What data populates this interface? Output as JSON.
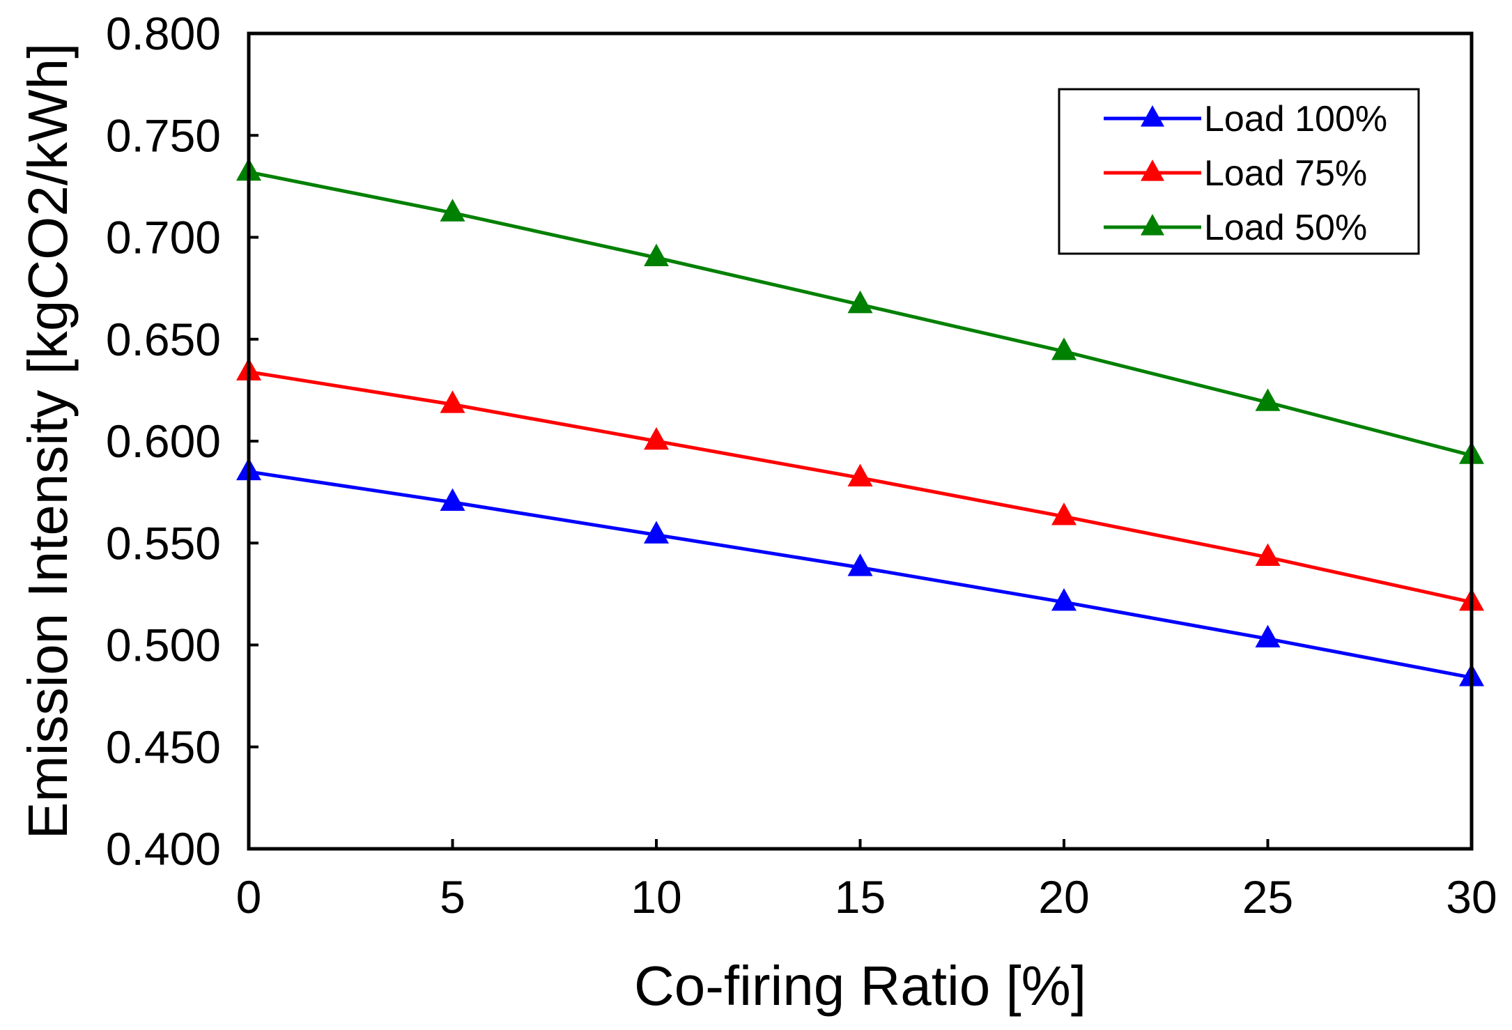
{
  "chart_data": {
    "type": "line",
    "title": "",
    "xlabel": "Co-firing Ratio [%]",
    "ylabel": "Emission Intensity [kgCO2/kWh]",
    "x": [
      0,
      5,
      10,
      15,
      20,
      25,
      30
    ],
    "xlim": [
      0,
      30
    ],
    "ylim": [
      0.4,
      0.8
    ],
    "x_ticks": [
      0,
      5,
      10,
      15,
      20,
      25,
      30
    ],
    "x_tick_labels": [
      "0",
      "5",
      "10",
      "15",
      "20",
      "25",
      "30"
    ],
    "y_ticks": [
      0.4,
      0.45,
      0.5,
      0.55,
      0.6,
      0.65,
      0.7,
      0.75,
      0.8
    ],
    "y_tick_labels": [
      "0.400",
      "0.450",
      "0.500",
      "0.550",
      "0.600",
      "0.650",
      "0.700",
      "0.750",
      "0.800"
    ],
    "grid": false,
    "legend_position": "top-right",
    "marker": "triangle",
    "series": [
      {
        "name": "Load 100%",
        "color": "#0000ff",
        "values": [
          0.585,
          0.57,
          0.554,
          0.538,
          0.521,
          0.503,
          0.484
        ]
      },
      {
        "name": "Load 75%",
        "color": "#ff0000",
        "values": [
          0.634,
          0.618,
          0.6,
          0.582,
          0.563,
          0.543,
          0.521
        ]
      },
      {
        "name": "Load 50%",
        "color": "#008000",
        "values": [
          0.732,
          0.712,
          0.69,
          0.667,
          0.644,
          0.619,
          0.593
        ]
      }
    ]
  }
}
